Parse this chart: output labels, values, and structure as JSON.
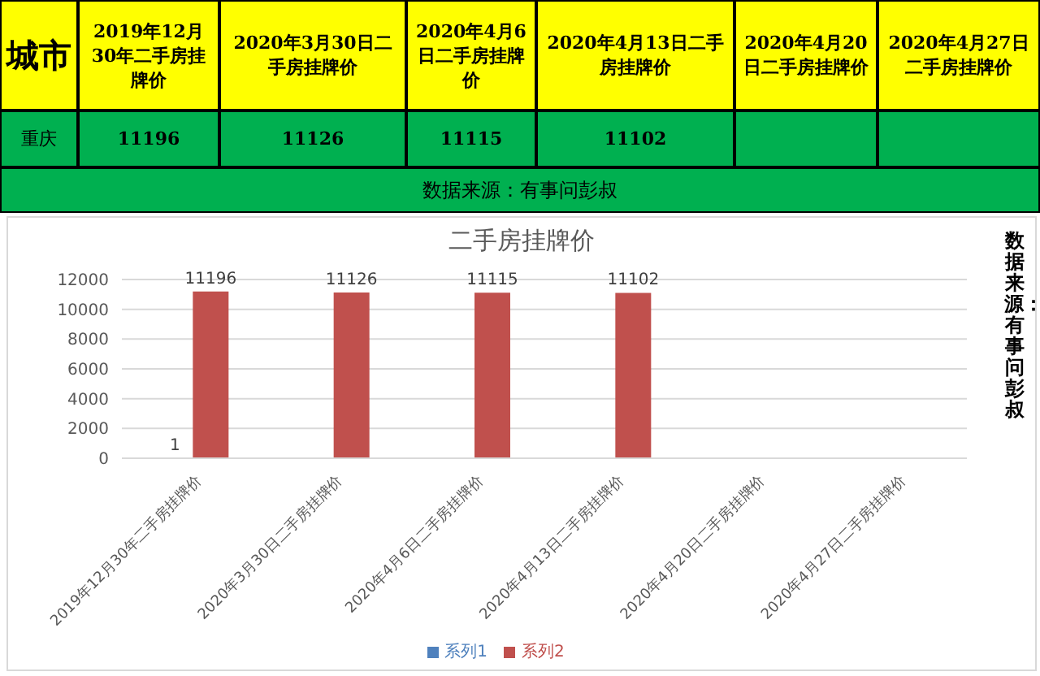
{
  "chart_data": [
    {
      "type": "other",
      "categories": [
        "城市",
        "2019年12月30年二手房挂牌价",
        "2020年3月30日二手房挂牌价",
        "2020年4月6日二手房挂牌价",
        "2020年4月13日二手房挂牌价",
        "2020年4月20日二手房挂牌价",
        "2020年4月27日二手房挂牌价"
      ],
      "series": [
        {
          "name": "重庆",
          "values": [
            null,
            11196,
            11126,
            11115,
            11102,
            null,
            null
          ]
        }
      ],
      "data_labels": true,
      "annotations": [
        "数据来源：有事问彭叔"
      ]
    },
    {
      "type": "bar",
      "title": "二手房挂牌价",
      "categories": [
        "2019年12月30年二手房挂牌价",
        "2020年3月30日二手房挂牌价",
        "2020年4月6日二手房挂牌价",
        "2020年4月13日二手房挂牌价",
        "2020年4月20日二手房挂牌价",
        "2020年4月27日二手房挂牌价"
      ],
      "series": [
        {
          "name": "系列1",
          "color": "#4f81bd",
          "values": [
            1,
            null,
            null,
            null,
            null,
            null
          ],
          "value_labels": [
            "1",
            null,
            null,
            null,
            null,
            null
          ]
        },
        {
          "name": "系列2",
          "color": "#c0504d",
          "values": [
            11196,
            11126,
            11115,
            11102,
            null,
            null
          ],
          "value_labels": [
            "11196",
            "11126",
            "11115",
            "11102",
            null,
            null
          ]
        }
      ],
      "ylim": [
        0,
        12000
      ],
      "yticks": [
        0,
        2000,
        4000,
        6000,
        8000,
        10000,
        12000
      ],
      "grid": "y",
      "legend": "bottom",
      "annotations": [
        "数据来源：有事问彭叔"
      ]
    }
  ]
}
